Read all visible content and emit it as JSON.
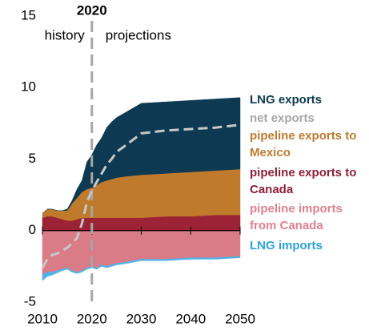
{
  "chart_data": {
    "type": "stacked_area",
    "vline": 2020,
    "annotations": [
      "history",
      "projections"
    ],
    "x": [
      2010,
      2011,
      2012,
      2013,
      2014,
      2015,
      2016,
      2017,
      2018,
      2019,
      2020,
      2021,
      2022,
      2023,
      2024,
      2025,
      2027,
      2030,
      2035,
      2040,
      2045,
      2050
    ],
    "series": [
      {
        "name": "LNG exports",
        "color": "#0d3a52",
        "label_color": "#0d3a52",
        "values": [
          0,
          0,
          0,
          0,
          0,
          0.1,
          0.2,
          0.6,
          0.8,
          1.9,
          2.3,
          2.8,
          3.1,
          3.7,
          4.0,
          4.2,
          4.5,
          5.0,
          5.0,
          5.0,
          5.0,
          5.0
        ]
      },
      {
        "name": "net exports",
        "type": "line",
        "color": "#c8c8c8",
        "label_color": "#a6a6a6",
        "values": [
          -2.6,
          -2.0,
          -1.7,
          -1.6,
          -1.4,
          -1.2,
          -0.9,
          -0.5,
          0.5,
          2.0,
          2.8,
          3.4,
          4.0,
          4.6,
          5.0,
          5.5,
          6.0,
          6.8,
          7.0,
          7.1,
          7.2,
          7.4
        ]
      },
      {
        "name": "pipeline exports to Mexico",
        "color": "#c07a2c",
        "label_color": "#c07a2c",
        "values": [
          0.3,
          0.5,
          0.5,
          0.5,
          0.6,
          0.7,
          1.2,
          1.5,
          1.8,
          2.0,
          2.1,
          2.3,
          2.5,
          2.6,
          2.7,
          2.8,
          2.9,
          3.0,
          3.0,
          3.1,
          3.1,
          3.2
        ]
      },
      {
        "name": "pipeline exports to Canada",
        "color": "#9b2335",
        "label_color": "#8e1f3a",
        "values": [
          0.9,
          1.0,
          1.0,
          0.9,
          0.8,
          0.7,
          0.7,
          0.8,
          0.9,
          0.9,
          0.9,
          0.9,
          0.9,
          0.9,
          0.9,
          0.9,
          0.9,
          0.9,
          1.0,
          1.0,
          1.1,
          1.1
        ]
      },
      {
        "name": "pipeline imports from Canada",
        "color": "#d97c87",
        "label_color": "#e0808e",
        "values": [
          -3.1,
          -2.9,
          -2.9,
          -2.8,
          -2.7,
          -2.6,
          -2.8,
          -2.9,
          -2.8,
          -2.6,
          -2.5,
          -2.6,
          -2.4,
          -2.5,
          -2.4,
          -2.3,
          -2.2,
          -2.0,
          -2.0,
          -1.9,
          -1.9,
          -1.8
        ]
      },
      {
        "name": "LNG imports",
        "color": "#4fb3e8",
        "label_color": "#29a3dc",
        "values": [
          -0.4,
          -0.3,
          -0.2,
          -0.15,
          -0.1,
          -0.1,
          -0.1,
          -0.1,
          -0.1,
          -0.1,
          -0.1,
          -0.1,
          -0.1,
          -0.1,
          -0.1,
          -0.1,
          -0.1,
          -0.1,
          -0.1,
          -0.1,
          -0.1,
          -0.1
        ]
      }
    ],
    "xlim": [
      2010,
      2050
    ],
    "xticks": [
      2010,
      2020,
      2030,
      2040,
      2050
    ],
    "ylim": [
      -5,
      15
    ],
    "yticks": [
      -5,
      0,
      5,
      10,
      15
    ]
  }
}
